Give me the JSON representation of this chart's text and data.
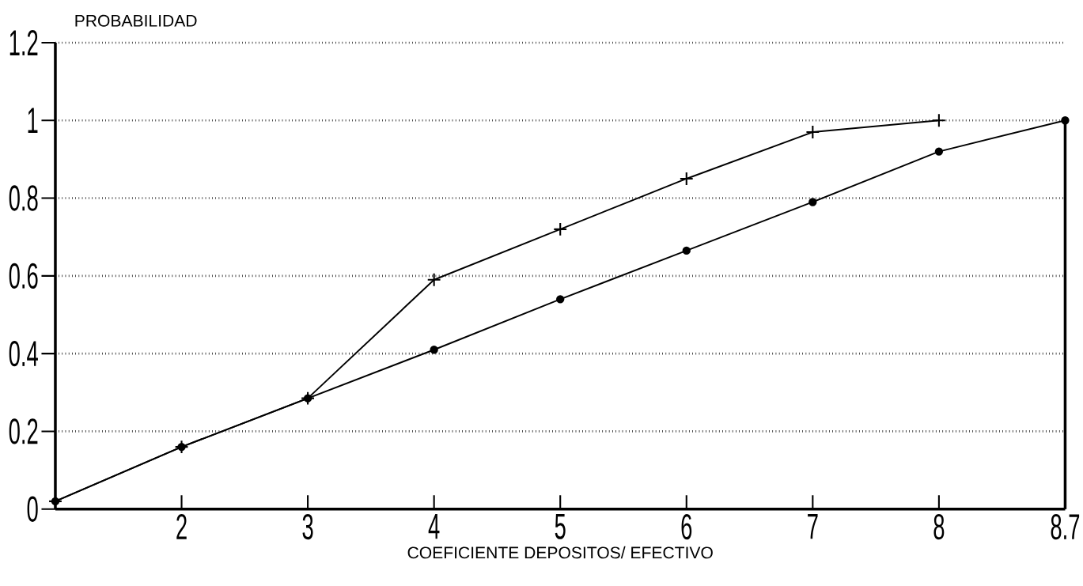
{
  "chart_data": {
    "type": "line",
    "xlabel": "COEFICIENTE DEPOSITOS/ EFECTIVO",
    "ylabel": "PROBABILIDAD",
    "categories": [
      null,
      "2",
      "3",
      "4",
      "5",
      "6",
      "7",
      "8",
      "8.7"
    ],
    "series": [
      {
        "color": "#000000",
        "marker": "cross",
        "values": [
          0.02,
          0.16,
          0.285,
          0.59,
          0.72,
          0.85,
          0.97,
          1.0,
          null
        ]
      },
      {
        "color": "#000000",
        "marker": "circle",
        "values": [
          0.02,
          0.16,
          0.285,
          0.41,
          0.54,
          0.665,
          0.79,
          0.92,
          1.0
        ]
      }
    ],
    "ylim": [
      0,
      1.2
    ],
    "yticks": [
      0,
      0.2,
      0.4,
      0.6,
      0.8,
      1,
      1.2
    ],
    "grid": "y",
    "line_style": "solid"
  }
}
